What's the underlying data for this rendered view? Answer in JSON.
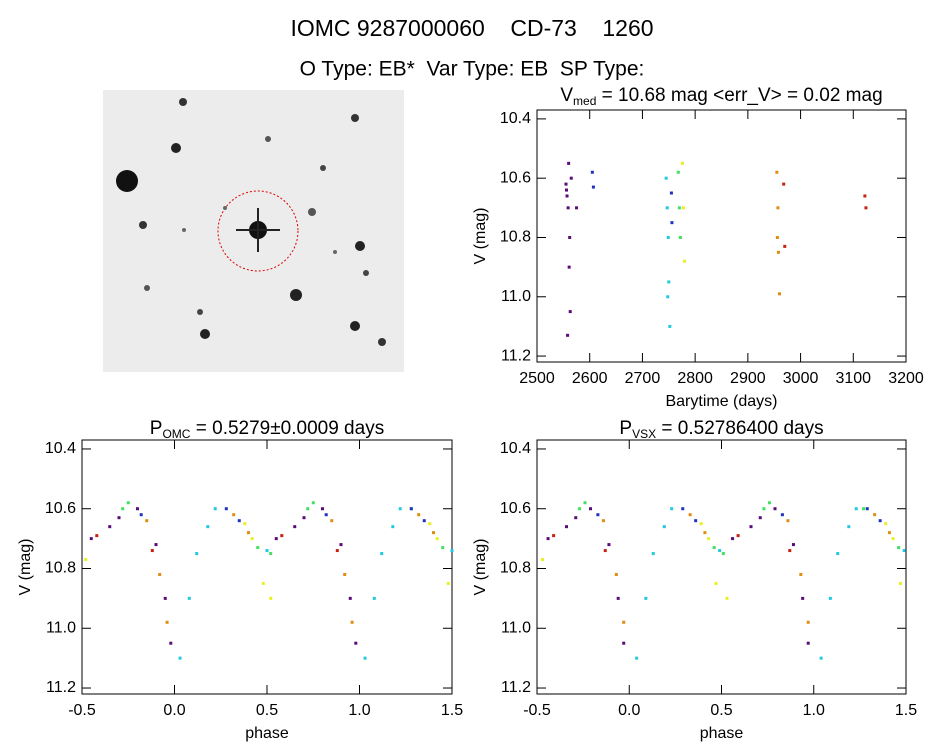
{
  "header": {
    "title": "IOMC 9287000060    CD-73    1260",
    "subtitle": "O Type: EB*  Var Type: EB  SP Type:"
  },
  "chart_data": [
    {
      "type": "scatter",
      "title": [
        "V",
        "med",
        " = 10.68 mag <err_V> = 0.02 mag"
      ],
      "xlabel": "Barytime (days)",
      "ylabel": "V (mag)",
      "xlim": [
        2500,
        3200
      ],
      "ylim": [
        11.22,
        10.37
      ],
      "xticks": [
        2500,
        2600,
        2700,
        2800,
        2900,
        3000,
        3100,
        3200
      ],
      "yticks": [
        10.4,
        10.6,
        10.8,
        {
          "value": 11,
          "label": "11.0"
        },
        11.2
      ],
      "series": [
        {
          "color": "#5a0a7a",
          "x": [
            2555,
            2557,
            2559,
            2561,
            2563,
            2565,
            2558,
            2560,
            2575,
            2556,
            2562
          ],
          "values": [
            10.62,
            10.66,
            10.7,
            10.9,
            11.05,
            10.6,
            11.13,
            10.55,
            10.7,
            10.64,
            10.8
          ]
        },
        {
          "color": "#2030c0",
          "x": [
            2605,
            2607,
            2755,
            2756
          ],
          "values": [
            10.58,
            10.63,
            10.65,
            10.75
          ]
        },
        {
          "color": "#20c8e0",
          "x": [
            2745,
            2747,
            2749,
            2750,
            2752,
            2748
          ],
          "values": [
            10.6,
            10.7,
            10.8,
            10.95,
            11.1,
            11.0
          ]
        },
        {
          "color": "#40e060",
          "x": [
            2768,
            2770,
            2772
          ],
          "values": [
            10.58,
            10.7,
            10.8
          ]
        },
        {
          "color": "#e8f020",
          "x": [
            2776,
            2778,
            2780
          ],
          "values": [
            10.55,
            10.7,
            10.88
          ]
        },
        {
          "color": "#e08c10",
          "x": [
            2955,
            2957,
            2958,
            2960,
            2956
          ],
          "values": [
            10.58,
            10.7,
            10.85,
            10.99,
            10.8
          ]
        },
        {
          "color": "#c82010",
          "x": [
            2968,
            2970,
            3122,
            3124
          ],
          "values": [
            10.62,
            10.83,
            10.66,
            10.7
          ]
        }
      ]
    },
    {
      "type": "scatter",
      "title": [
        "P",
        "OMC",
        " = 0.5279±0.0009 days"
      ],
      "xlabel": "phase",
      "ylabel": "V (mag)",
      "xlim": [
        -0.5,
        1.5
      ],
      "ylim": [
        11.22,
        10.37
      ],
      "xticks": [
        -0.5,
        {
          "value": 0,
          "label": "0.0"
        },
        0.5,
        {
          "value": 1,
          "label": "1.0"
        },
        1.5
      ],
      "yticks": [
        10.4,
        10.6,
        10.8,
        {
          "value": 11,
          "label": "11.0"
        },
        11.2
      ],
      "series": [
        {
          "color": "#5a0a7a",
          "x": [
            -0.45,
            -0.35,
            -0.3,
            -0.2,
            -0.1,
            -0.05,
            -0.02,
            0.55,
            0.65,
            0.7,
            0.8,
            0.9,
            0.95,
            0.98
          ],
          "values": [
            10.7,
            10.66,
            10.63,
            10.6,
            10.72,
            10.9,
            11.05,
            10.7,
            10.66,
            10.63,
            10.6,
            10.72,
            10.9,
            11.05
          ]
        },
        {
          "color": "#e08c10",
          "x": [
            -0.15,
            -0.08,
            -0.04,
            0.32,
            0.4,
            0.85,
            0.92,
            0.96,
            1.32,
            1.4
          ],
          "values": [
            10.64,
            10.82,
            10.98,
            10.62,
            10.68,
            10.64,
            10.82,
            10.98,
            10.62,
            10.68
          ]
        },
        {
          "color": "#20c8e0",
          "x": [
            0.03,
            0.08,
            0.12,
            0.18,
            0.22,
            0.5,
            1.03,
            1.08,
            1.12,
            1.18,
            1.22,
            1.5
          ],
          "values": [
            11.1,
            10.9,
            10.75,
            10.66,
            10.6,
            10.74,
            11.1,
            10.9,
            10.75,
            10.66,
            10.6,
            10.74
          ]
        },
        {
          "color": "#40e060",
          "x": [
            -0.28,
            -0.25,
            0.45,
            0.52,
            0.72,
            0.75,
            1.45,
            1.28
          ],
          "values": [
            10.6,
            10.58,
            10.73,
            10.75,
            10.6,
            10.58,
            10.73,
            10.6
          ]
        },
        {
          "color": "#e8f020",
          "x": [
            -0.48,
            0.38,
            0.42,
            0.48,
            0.52,
            1.38,
            1.42,
            1.48
          ],
          "values": [
            10.77,
            10.65,
            10.7,
            10.85,
            10.9,
            10.65,
            10.7,
            10.85
          ]
        },
        {
          "color": "#c82010",
          "x": [
            -0.42,
            -0.12,
            0.58,
            0.88
          ],
          "values": [
            10.69,
            10.74,
            10.69,
            10.74
          ]
        },
        {
          "color": "#2030c0",
          "x": [
            0.28,
            0.35,
            1.28,
            1.35,
            -0.18,
            0.82
          ],
          "values": [
            10.6,
            10.64,
            10.6,
            10.64,
            10.62,
            10.62
          ]
        }
      ]
    },
    {
      "type": "scatter",
      "title": [
        "P",
        "VSX",
        " = 0.52786400 days"
      ],
      "xlabel": "phase",
      "ylabel": "V (mag)",
      "xlim": [
        -0.5,
        1.5
      ],
      "ylim": [
        11.22,
        10.37
      ],
      "xticks": [
        -0.5,
        {
          "value": 0,
          "label": "0.0"
        },
        0.5,
        {
          "value": 1,
          "label": "1.0"
        },
        1.5
      ],
      "yticks": [
        10.4,
        10.6,
        10.8,
        {
          "value": 11,
          "label": "11.0"
        },
        11.2
      ],
      "series": [
        {
          "color": "#5a0a7a",
          "x": [
            -0.44,
            -0.34,
            -0.29,
            -0.21,
            -0.11,
            -0.06,
            -0.03,
            0.56,
            0.66,
            0.71,
            0.79,
            0.89,
            0.94,
            0.97
          ],
          "values": [
            10.7,
            10.66,
            10.63,
            10.6,
            10.72,
            10.9,
            11.05,
            10.7,
            10.66,
            10.63,
            10.6,
            10.72,
            10.9,
            11.05
          ]
        },
        {
          "color": "#e08c10",
          "x": [
            -0.14,
            -0.07,
            -0.03,
            0.33,
            0.41,
            0.86,
            0.93,
            0.97,
            1.33,
            1.41
          ],
          "values": [
            10.64,
            10.82,
            10.98,
            10.62,
            10.68,
            10.64,
            10.82,
            10.98,
            10.62,
            10.68
          ]
        },
        {
          "color": "#20c8e0",
          "x": [
            0.04,
            0.09,
            0.13,
            0.19,
            0.23,
            0.49,
            1.04,
            1.09,
            1.13,
            1.19,
            1.23,
            1.49
          ],
          "values": [
            11.1,
            10.9,
            10.75,
            10.66,
            10.6,
            10.74,
            11.1,
            10.9,
            10.75,
            10.66,
            10.6,
            10.74
          ]
        },
        {
          "color": "#40e060",
          "x": [
            -0.27,
            -0.24,
            0.46,
            0.51,
            0.73,
            0.76,
            1.46,
            1.27
          ],
          "values": [
            10.6,
            10.58,
            10.73,
            10.75,
            10.6,
            10.58,
            10.73,
            10.6
          ]
        },
        {
          "color": "#e8f020",
          "x": [
            -0.47,
            0.39,
            0.43,
            0.47,
            0.53,
            1.39,
            1.43,
            1.47
          ],
          "values": [
            10.77,
            10.65,
            10.7,
            10.85,
            10.9,
            10.65,
            10.7,
            10.85
          ]
        },
        {
          "color": "#c82010",
          "x": [
            -0.41,
            -0.13,
            0.59,
            0.87
          ],
          "values": [
            10.69,
            10.74,
            10.69,
            10.74
          ]
        },
        {
          "color": "#2030c0",
          "x": [
            0.29,
            0.36,
            1.29,
            1.36,
            -0.17,
            0.83
          ],
          "values": [
            10.6,
            10.64,
            10.6,
            10.64,
            10.62,
            10.62
          ]
        }
      ]
    }
  ]
}
